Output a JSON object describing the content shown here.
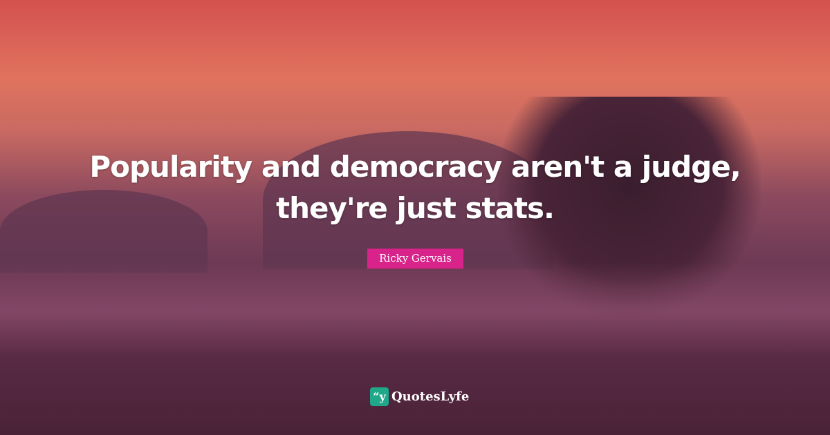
{
  "quote": {
    "line1": "Popularity and democracy aren't a judge,",
    "line2": "they're just stats."
  },
  "author": "Ricky Gervais",
  "brand": {
    "name": "QuotesLyfe",
    "icon": "quote-icon",
    "icon_glyph": "“y",
    "color": "#1fa88a"
  },
  "colors": {
    "author_badge": "#d8248a"
  }
}
